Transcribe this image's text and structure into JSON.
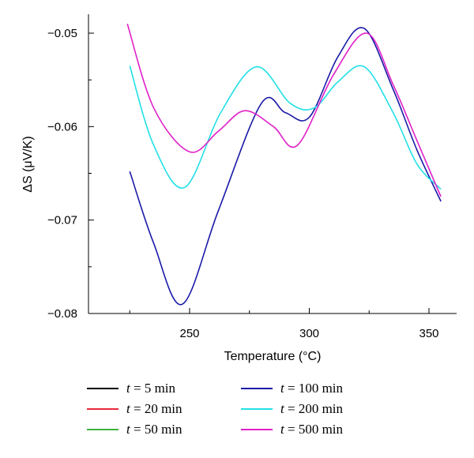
{
  "chart_data": {
    "type": "line",
    "xlabel": "Temperature (°C)",
    "ylabel": "ΔS (μV/K)",
    "xlim": [
      210,
      355
    ],
    "ylim": [
      -0.08,
      -0.048
    ],
    "xticks": [
      250,
      300,
      350
    ],
    "xtick_labels": [
      "250",
      "300",
      "350"
    ],
    "yticks": [
      -0.08,
      -0.07,
      -0.06,
      -0.05
    ],
    "ytick_labels": [
      "−0.08",
      "−0.07",
      "−0.06",
      "−0.05"
    ],
    "grid": false,
    "legend_placement": "bottom",
    "legend_var": "t",
    "legend_eq": "=",
    "series": [
      {
        "name": "5 min",
        "color": "#000000",
        "x": [],
        "y": []
      },
      {
        "name": "20 min",
        "color": "#e8283c",
        "x": [],
        "y": []
      },
      {
        "name": "50 min",
        "color": "#3cb43c",
        "x": [],
        "y": []
      },
      {
        "name": "100 min",
        "color": "#1a1aa8",
        "x": [
          225,
          235,
          247,
          262,
          280,
          290,
          300,
          312,
          323,
          335,
          345,
          355
        ],
        "y": [
          -0.0648,
          -0.0725,
          -0.079,
          -0.069,
          -0.0575,
          -0.0585,
          -0.059,
          -0.0525,
          -0.0495,
          -0.056,
          -0.0625,
          -0.068
        ]
      },
      {
        "name": "200 min",
        "color": "#22e0e6",
        "x": [
          225,
          235,
          248,
          263,
          278,
          292,
          302,
          312,
          323,
          335,
          345,
          355
        ],
        "y": [
          -0.0535,
          -0.062,
          -0.0665,
          -0.0585,
          -0.0536,
          -0.0575,
          -0.058,
          -0.0552,
          -0.0536,
          -0.0585,
          -0.064,
          -0.0667
        ]
      },
      {
        "name": "500 min",
        "color": "#e020c8",
        "x": [
          224,
          235,
          250,
          262,
          273,
          285,
          295,
          310,
          324,
          335,
          345,
          355
        ],
        "y": [
          -0.049,
          -0.058,
          -0.0627,
          -0.0605,
          -0.0583,
          -0.06,
          -0.062,
          -0.0545,
          -0.05,
          -0.0555,
          -0.0615,
          -0.0675
        ]
      }
    ]
  }
}
